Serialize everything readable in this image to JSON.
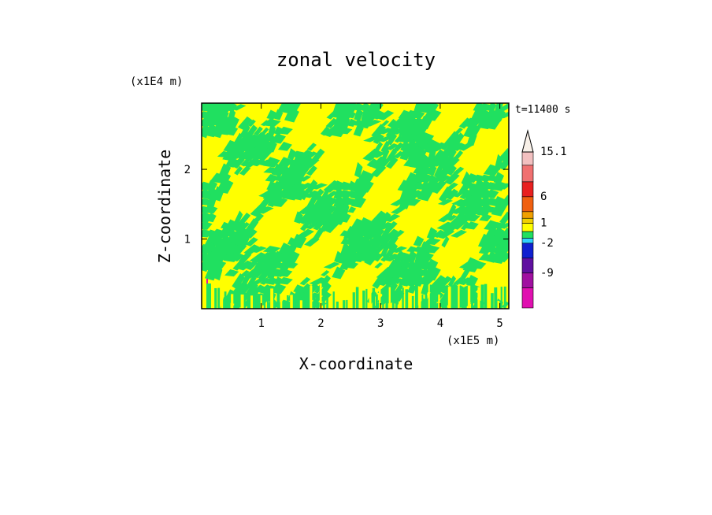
{
  "chart_data": {
    "type": "heatmap",
    "title": "zonal velocity",
    "xlabel": "X-coordinate",
    "ylabel": "Z-coordinate",
    "x_exponent_label": "(x1E5 m)",
    "y_exponent_label": "(x1E4 m)",
    "time_label": "t=11400 s",
    "xlim": [
      0,
      5.15
    ],
    "ylim": [
      0,
      2.95
    ],
    "x_ticks": [
      1,
      2,
      3,
      4,
      5
    ],
    "y_ticks": [
      1,
      2
    ],
    "x_tick_labels": [
      "1",
      "2",
      "3",
      "4",
      "5"
    ],
    "y_tick_labels": [
      "1",
      "2"
    ],
    "field_description": "alternating yellow (0 to 1) and green (-1 to 0) wave-like bands across the domain",
    "colorbar": {
      "labels": [
        "15.1",
        "6",
        "1",
        "-2",
        "-9"
      ],
      "levels": [
        {
          "value": 15.1,
          "color": "#f2c0c0"
        },
        {
          "value": 12,
          "color": "#f07070"
        },
        {
          "value": 9,
          "color": "#e82020"
        },
        {
          "value": 6,
          "color": "#f06010"
        },
        {
          "value": 3,
          "color": "#f0a000"
        },
        {
          "value": 2,
          "color": "#f0d000"
        },
        {
          "value": 1,
          "color": "#ffff00"
        },
        {
          "value": 0,
          "color": "#20e060"
        },
        {
          "value": -1,
          "color": "#30d0ff"
        },
        {
          "value": -2,
          "color": "#1020d0"
        },
        {
          "value": -5,
          "color": "#6010a0"
        },
        {
          "value": -9,
          "color": "#a010a0"
        },
        {
          "value": -12,
          "color": "#e010b0"
        }
      ],
      "top_extension_color": "#f8f0e8"
    }
  }
}
